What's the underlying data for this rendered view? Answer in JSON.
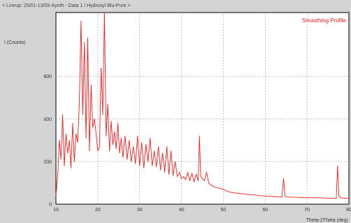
{
  "header": "< Lineup: 25/01-13/05-Aynth - Data 1 / Hydroxyl Blu-Pure >",
  "chart_data": {
    "type": "line",
    "xlabel": "Theta-2Theta (deg)",
    "ylabel": "I (Counts)",
    "xlim": [
      10,
      80
    ],
    "ylim": [
      0,
      900
    ],
    "xticks": [
      10,
      20,
      30,
      40,
      50,
      60,
      70,
      80
    ],
    "yticks": [
      0,
      200,
      400,
      600
    ],
    "grid": true,
    "legend_position": "top-right",
    "series": [
      {
        "name": "Smoothing Profile",
        "color": "#ff1a1a",
        "x": [
          10,
          10.5,
          10.8,
          11.2,
          11.6,
          12,
          12.4,
          12.8,
          13.2,
          13.6,
          14,
          14.4,
          14.8,
          15.2,
          15.6,
          16,
          16.4,
          16.8,
          17.2,
          17.6,
          18,
          18.4,
          18.8,
          19.2,
          19.6,
          20,
          20.4,
          20.8,
          21.2,
          21.6,
          22,
          22.4,
          22.8,
          23.2,
          23.6,
          24,
          24.4,
          24.8,
          25.2,
          25.6,
          26,
          26.5,
          27,
          27.5,
          28,
          28.5,
          29,
          29.5,
          30,
          30.5,
          31,
          31.5,
          32,
          32.5,
          33,
          33.5,
          34,
          34.5,
          35,
          35.5,
          36,
          36.5,
          37,
          37.5,
          38,
          38.5,
          39,
          39.5,
          40,
          40.5,
          41,
          41.5,
          42,
          42.5,
          43,
          43.5,
          44,
          44.3,
          44.6,
          45,
          45.5,
          46,
          46.5,
          47,
          47.5,
          48,
          49,
          50,
          51,
          52,
          53,
          54,
          55,
          56,
          57,
          58,
          59,
          60,
          61,
          62,
          63,
          64,
          64.4,
          64.7,
          65,
          66,
          67,
          68,
          69,
          70,
          71,
          72,
          73,
          74,
          75,
          76,
          77,
          77.3,
          77.6,
          78,
          78.5,
          79,
          80
        ],
        "y": [
          40,
          160,
          300,
          210,
          420,
          180,
          330,
          240,
          300,
          170,
          380,
          200,
          330,
          290,
          480,
          860,
          420,
          760,
          310,
          780,
          250,
          560,
          360,
          400,
          330,
          250,
          270,
          640,
          420,
          900,
          320,
          470,
          250,
          390,
          280,
          340,
          260,
          380,
          240,
          310,
          220,
          320,
          210,
          300,
          200,
          270,
          190,
          320,
          180,
          290,
          170,
          280,
          200,
          310,
          180,
          250,
          175,
          270,
          160,
          240,
          150,
          270,
          140,
          250,
          135,
          200,
          130,
          150,
          120,
          130,
          115,
          150,
          110,
          145,
          105,
          140,
          110,
          320,
          130,
          120,
          110,
          150,
          100,
          90,
          85,
          80,
          75,
          70,
          60,
          55,
          52,
          50,
          48,
          45,
          44,
          42,
          40,
          38,
          38,
          36,
          35,
          34,
          120,
          45,
          34,
          33,
          32,
          32,
          31,
          30,
          30,
          30,
          30,
          29,
          28,
          28,
          28,
          180,
          40,
          30,
          29,
          28,
          28
        ]
      }
    ]
  }
}
